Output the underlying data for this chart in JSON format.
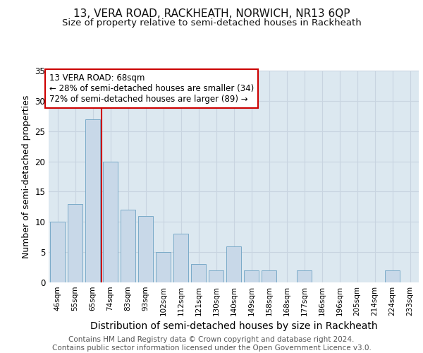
{
  "title": "13, VERA ROAD, RACKHEATH, NORWICH, NR13 6QP",
  "subtitle": "Size of property relative to semi-detached houses in Rackheath",
  "xlabel": "Distribution of semi-detached houses by size in Rackheath",
  "ylabel": "Number of semi-detached properties",
  "categories": [
    "46sqm",
    "55sqm",
    "65sqm",
    "74sqm",
    "83sqm",
    "93sqm",
    "102sqm",
    "112sqm",
    "121sqm",
    "130sqm",
    "140sqm",
    "149sqm",
    "158sqm",
    "168sqm",
    "177sqm",
    "186sqm",
    "196sqm",
    "205sqm",
    "214sqm",
    "224sqm",
    "233sqm"
  ],
  "values": [
    10,
    13,
    27,
    20,
    12,
    11,
    5,
    8,
    3,
    2,
    6,
    2,
    2,
    0,
    2,
    0,
    0,
    0,
    0,
    2,
    0
  ],
  "bar_color": "#c8d8e8",
  "bar_edge_color": "#7aaac8",
  "vline_x": 2.5,
  "vline_color": "#cc0000",
  "annotation_text": "13 VERA ROAD: 68sqm\n← 28% of semi-detached houses are smaller (34)\n72% of semi-detached houses are larger (89) →",
  "annotation_box_color": "#ffffff",
  "annotation_box_edge_color": "#cc0000",
  "ylim": [
    0,
    35
  ],
  "yticks": [
    0,
    5,
    10,
    15,
    20,
    25,
    30,
    35
  ],
  "grid_color": "#c8d4e0",
  "background_color": "#dce8f0",
  "footer_text": "Contains HM Land Registry data © Crown copyright and database right 2024.\nContains public sector information licensed under the Open Government Licence v3.0.",
  "title_fontsize": 11,
  "subtitle_fontsize": 9.5,
  "xlabel_fontsize": 10,
  "ylabel_fontsize": 9,
  "annotation_fontsize": 8.5,
  "footer_fontsize": 7.5,
  "tick_fontsize": 7.5,
  "ytick_fontsize": 8.5
}
